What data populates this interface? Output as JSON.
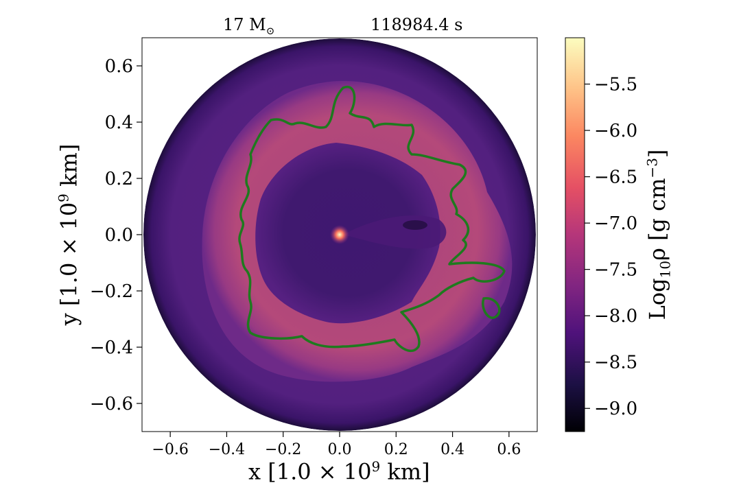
{
  "chart_data": {
    "type": "heatmap",
    "title_left": "17 M",
    "title_left_subscript": "⊙",
    "title_right": "118984.4 s",
    "xlabel": "x [1.0 × 10",
    "xlabel_exp": "9",
    "xlabel_tail": " km]",
    "ylabel": "y [1.0 × 10",
    "ylabel_exp": "9",
    "ylabel_tail": " km]",
    "colorbar_label_prefix": "Log",
    "colorbar_label_sub": "10",
    "colorbar_label_rho": "ρ [g cm",
    "colorbar_label_exp": "−3",
    "colorbar_label_tail": "]",
    "xlim": [
      -0.7,
      0.7
    ],
    "ylim": [
      -0.7,
      0.7
    ],
    "x_ticks": [
      {
        "v": -0.6,
        "label": "−0.6"
      },
      {
        "v": -0.4,
        "label": "−0.4"
      },
      {
        "v": -0.2,
        "label": "−0.2"
      },
      {
        "v": 0.0,
        "label": "0.0"
      },
      {
        "v": 0.2,
        "label": "0.2"
      },
      {
        "v": 0.4,
        "label": "0.4"
      },
      {
        "v": 0.6,
        "label": "0.6"
      }
    ],
    "y_ticks": [
      {
        "v": 0.6,
        "label": "0.6"
      },
      {
        "v": 0.4,
        "label": "0.4"
      },
      {
        "v": 0.2,
        "label": "0.2"
      },
      {
        "v": 0.0,
        "label": "0.0"
      },
      {
        "v": -0.2,
        "label": "−0.2"
      },
      {
        "v": -0.4,
        "label": "−0.4"
      },
      {
        "v": -0.6,
        "label": "−0.6"
      }
    ],
    "colorbar_range": [
      -9.25,
      -5.0
    ],
    "colorbar_ticks": [
      {
        "v": -5.5,
        "label": "−5.5"
      },
      {
        "v": -6.0,
        "label": "−6.0"
      },
      {
        "v": -6.5,
        "label": "−6.5"
      },
      {
        "v": -7.0,
        "label": "−7.0"
      },
      {
        "v": -7.5,
        "label": "−7.5"
      },
      {
        "v": -8.0,
        "label": "−8.0"
      },
      {
        "v": -8.5,
        "label": "−8.5"
      },
      {
        "v": -9.0,
        "label": "−9.0"
      }
    ],
    "colormap": "magma",
    "contour_color": "#1e7a1e",
    "domain_radius": 0.7,
    "regions": [
      {
        "name": "outer-envelope",
        "log_rho": -8.3
      },
      {
        "name": "bright-shell",
        "log_rho": -7.4
      },
      {
        "name": "inner-cavity",
        "log_rho": -8.5
      },
      {
        "name": "center-core",
        "log_rho": -5.5
      }
    ]
  }
}
